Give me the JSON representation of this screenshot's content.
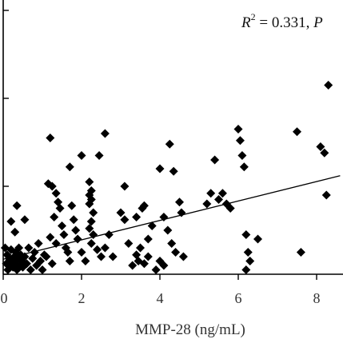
{
  "chart_data": {
    "type": "scatter",
    "title": "",
    "xlabel": "MMP-28 (ng/mL)",
    "ylabel": "",
    "xlim": [
      0,
      8.6
    ],
    "ylim": [
      0,
      3.1
    ],
    "x_ticks": [
      "0",
      "2",
      "4",
      "6",
      "8"
    ],
    "y_ticks": [
      0,
      1,
      2,
      3
    ],
    "grid": false,
    "marker": "diamond",
    "annotation": {
      "r2_label": "R",
      "r2_sup": "2",
      "r2_text": " = 0.331, ",
      "p_label": "P"
    },
    "trendline": {
      "x": [
        0,
        8.6
      ],
      "y": [
        0.17,
        1.12
      ]
    },
    "points": [
      {
        "x": 0.05,
        "y": 0.3
      },
      {
        "x": 0.08,
        "y": 0.12
      },
      {
        "x": 0.1,
        "y": 0.22
      },
      {
        "x": 0.12,
        "y": 0.05
      },
      {
        "x": 0.15,
        "y": 0.18
      },
      {
        "x": 0.18,
        "y": 0.1
      },
      {
        "x": 0.2,
        "y": 0.28
      },
      {
        "x": 0.22,
        "y": 0.15
      },
      {
        "x": 0.25,
        "y": 0.08
      },
      {
        "x": 0.28,
        "y": 0.2
      },
      {
        "x": 0.3,
        "y": 0.12
      },
      {
        "x": 0.32,
        "y": 0.25
      },
      {
        "x": 0.35,
        "y": 0.05
      },
      {
        "x": 0.38,
        "y": 0.18
      },
      {
        "x": 0.4,
        "y": 0.3
      },
      {
        "x": 0.42,
        "y": 0.1
      },
      {
        "x": 0.45,
        "y": 0.22
      },
      {
        "x": 0.48,
        "y": 0.15
      },
      {
        "x": 0.5,
        "y": 0.08
      },
      {
        "x": 0.55,
        "y": 0.2
      },
      {
        "x": 0.6,
        "y": 0.12
      },
      {
        "x": 0.65,
        "y": 0.3
      },
      {
        "x": 0.7,
        "y": 0.05
      },
      {
        "x": 0.75,
        "y": 0.18
      },
      {
        "x": 0.8,
        "y": 0.25
      },
      {
        "x": 0.85,
        "y": 0.1
      },
      {
        "x": 0.9,
        "y": 0.35
      },
      {
        "x": 0.95,
        "y": 0.15
      },
      {
        "x": 1.0,
        "y": 0.05
      },
      {
        "x": 1.05,
        "y": 0.22
      },
      {
        "x": 0.3,
        "y": 0.48
      },
      {
        "x": 0.55,
        "y": 0.62
      },
      {
        "x": 0.35,
        "y": 0.78
      },
      {
        "x": 0.2,
        "y": 0.6
      },
      {
        "x": 1.1,
        "y": 0.2
      },
      {
        "x": 1.2,
        "y": 1.55
      },
      {
        "x": 1.15,
        "y": 1.03
      },
      {
        "x": 1.25,
        "y": 1.0
      },
      {
        "x": 1.35,
        "y": 0.92
      },
      {
        "x": 1.4,
        "y": 0.82
      },
      {
        "x": 1.45,
        "y": 0.75
      },
      {
        "x": 1.3,
        "y": 0.65
      },
      {
        "x": 1.5,
        "y": 0.55
      },
      {
        "x": 1.55,
        "y": 0.45
      },
      {
        "x": 1.2,
        "y": 0.42
      },
      {
        "x": 1.35,
        "y": 0.35
      },
      {
        "x": 1.6,
        "y": 0.3
      },
      {
        "x": 1.65,
        "y": 0.25
      },
      {
        "x": 1.7,
        "y": 0.15
      },
      {
        "x": 1.25,
        "y": 0.12
      },
      {
        "x": 1.75,
        "y": 0.78
      },
      {
        "x": 1.8,
        "y": 0.62
      },
      {
        "x": 1.85,
        "y": 0.5
      },
      {
        "x": 1.7,
        "y": 1.22
      },
      {
        "x": 1.9,
        "y": 0.4
      },
      {
        "x": 2.0,
        "y": 1.35
      },
      {
        "x": 2.2,
        "y": 1.05
      },
      {
        "x": 2.25,
        "y": 0.95
      },
      {
        "x": 2.2,
        "y": 0.9
      },
      {
        "x": 2.25,
        "y": 0.85
      },
      {
        "x": 2.2,
        "y": 0.8
      },
      {
        "x": 2.3,
        "y": 0.7
      },
      {
        "x": 2.25,
        "y": 0.6
      },
      {
        "x": 2.2,
        "y": 0.52
      },
      {
        "x": 2.3,
        "y": 0.45
      },
      {
        "x": 2.25,
        "y": 0.35
      },
      {
        "x": 2.4,
        "y": 0.28
      },
      {
        "x": 2.5,
        "y": 0.2
      },
      {
        "x": 2.6,
        "y": 0.3
      },
      {
        "x": 2.45,
        "y": 1.35
      },
      {
        "x": 2.6,
        "y": 1.6
      },
      {
        "x": 2.7,
        "y": 0.45
      },
      {
        "x": 2.8,
        "y": 0.2
      },
      {
        "x": 2.1,
        "y": 0.15
      },
      {
        "x": 2.0,
        "y": 0.25
      },
      {
        "x": 3.0,
        "y": 0.7
      },
      {
        "x": 3.1,
        "y": 0.62
      },
      {
        "x": 3.2,
        "y": 0.35
      },
      {
        "x": 3.3,
        "y": 0.1
      },
      {
        "x": 3.1,
        "y": 1.0
      },
      {
        "x": 3.4,
        "y": 0.65
      },
      {
        "x": 3.5,
        "y": 0.3
      },
      {
        "x": 3.6,
        "y": 0.12
      },
      {
        "x": 3.7,
        "y": 0.4
      },
      {
        "x": 3.8,
        "y": 0.55
      },
      {
        "x": 3.6,
        "y": 0.78
      },
      {
        "x": 3.55,
        "y": 0.75
      },
      {
        "x": 3.4,
        "y": 0.22
      },
      {
        "x": 3.45,
        "y": 0.15
      },
      {
        "x": 3.7,
        "y": 0.2
      },
      {
        "x": 4.0,
        "y": 1.2
      },
      {
        "x": 4.1,
        "y": 0.65
      },
      {
        "x": 4.2,
        "y": 0.5
      },
      {
        "x": 4.3,
        "y": 0.35
      },
      {
        "x": 4.4,
        "y": 0.25
      },
      {
        "x": 4.0,
        "y": 0.15
      },
      {
        "x": 4.5,
        "y": 0.82
      },
      {
        "x": 4.35,
        "y": 1.17
      },
      {
        "x": 4.55,
        "y": 0.7
      },
      {
        "x": 4.25,
        "y": 1.48
      },
      {
        "x": 4.1,
        "y": 0.1
      },
      {
        "x": 3.9,
        "y": 0.05
      },
      {
        "x": 4.6,
        "y": 0.2
      },
      {
        "x": 5.2,
        "y": 0.8
      },
      {
        "x": 5.3,
        "y": 0.92
      },
      {
        "x": 5.4,
        "y": 1.3
      },
      {
        "x": 5.5,
        "y": 0.85
      },
      {
        "x": 5.6,
        "y": 0.92
      },
      {
        "x": 5.7,
        "y": 0.8
      },
      {
        "x": 5.8,
        "y": 0.75
      },
      {
        "x": 6.0,
        "y": 1.65
      },
      {
        "x": 6.05,
        "y": 1.52
      },
      {
        "x": 6.1,
        "y": 1.35
      },
      {
        "x": 6.15,
        "y": 1.22
      },
      {
        "x": 6.2,
        "y": 0.45
      },
      {
        "x": 6.25,
        "y": 0.25
      },
      {
        "x": 6.3,
        "y": 0.15
      },
      {
        "x": 6.2,
        "y": 0.05
      },
      {
        "x": 6.5,
        "y": 0.4
      },
      {
        "x": 7.5,
        "y": 1.62
      },
      {
        "x": 7.6,
        "y": 0.25
      },
      {
        "x": 8.1,
        "y": 1.45
      },
      {
        "x": 8.2,
        "y": 1.38
      },
      {
        "x": 8.25,
        "y": 0.9
      },
      {
        "x": 8.3,
        "y": 2.15
      }
    ]
  }
}
